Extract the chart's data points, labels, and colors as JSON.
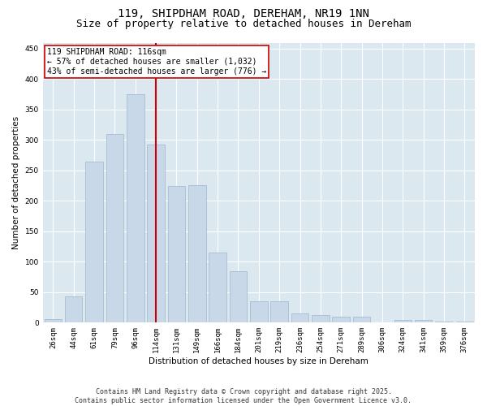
{
  "title1": "119, SHIPDHAM ROAD, DEREHAM, NR19 1NN",
  "title2": "Size of property relative to detached houses in Dereham",
  "xlabel": "Distribution of detached houses by size in Dereham",
  "ylabel": "Number of detached properties",
  "categories": [
    "26sqm",
    "44sqm",
    "61sqm",
    "79sqm",
    "96sqm",
    "114sqm",
    "131sqm",
    "149sqm",
    "166sqm",
    "184sqm",
    "201sqm",
    "219sqm",
    "236sqm",
    "254sqm",
    "271sqm",
    "289sqm",
    "306sqm",
    "324sqm",
    "341sqm",
    "359sqm",
    "376sqm"
  ],
  "values": [
    6,
    43,
    265,
    310,
    375,
    293,
    225,
    226,
    115,
    85,
    35,
    35,
    15,
    12,
    10,
    10,
    0,
    5,
    5,
    2,
    2
  ],
  "bar_color": "#c8d8e8",
  "bar_edgecolor": "#9ab8cc",
  "vline_x_index": 5,
  "vline_color": "#cc0000",
  "annotation_text": "119 SHIPDHAM ROAD: 116sqm\n← 57% of detached houses are smaller (1,032)\n43% of semi-detached houses are larger (776) →",
  "annotation_box_edgecolor": "#cc0000",
  "annotation_box_facecolor": "#ffffff",
  "ylim": [
    0,
    460
  ],
  "yticks": [
    0,
    50,
    100,
    150,
    200,
    250,
    300,
    350,
    400,
    450
  ],
  "footer_text": "Contains HM Land Registry data © Crown copyright and database right 2025.\nContains public sector information licensed under the Open Government Licence v3.0.",
  "fig_facecolor": "#ffffff",
  "plot_bg_color": "#dce8f0",
  "title_fontsize": 10,
  "subtitle_fontsize": 9,
  "axis_label_fontsize": 7.5,
  "tick_fontsize": 6.5,
  "footer_fontsize": 6,
  "annotation_fontsize": 7
}
